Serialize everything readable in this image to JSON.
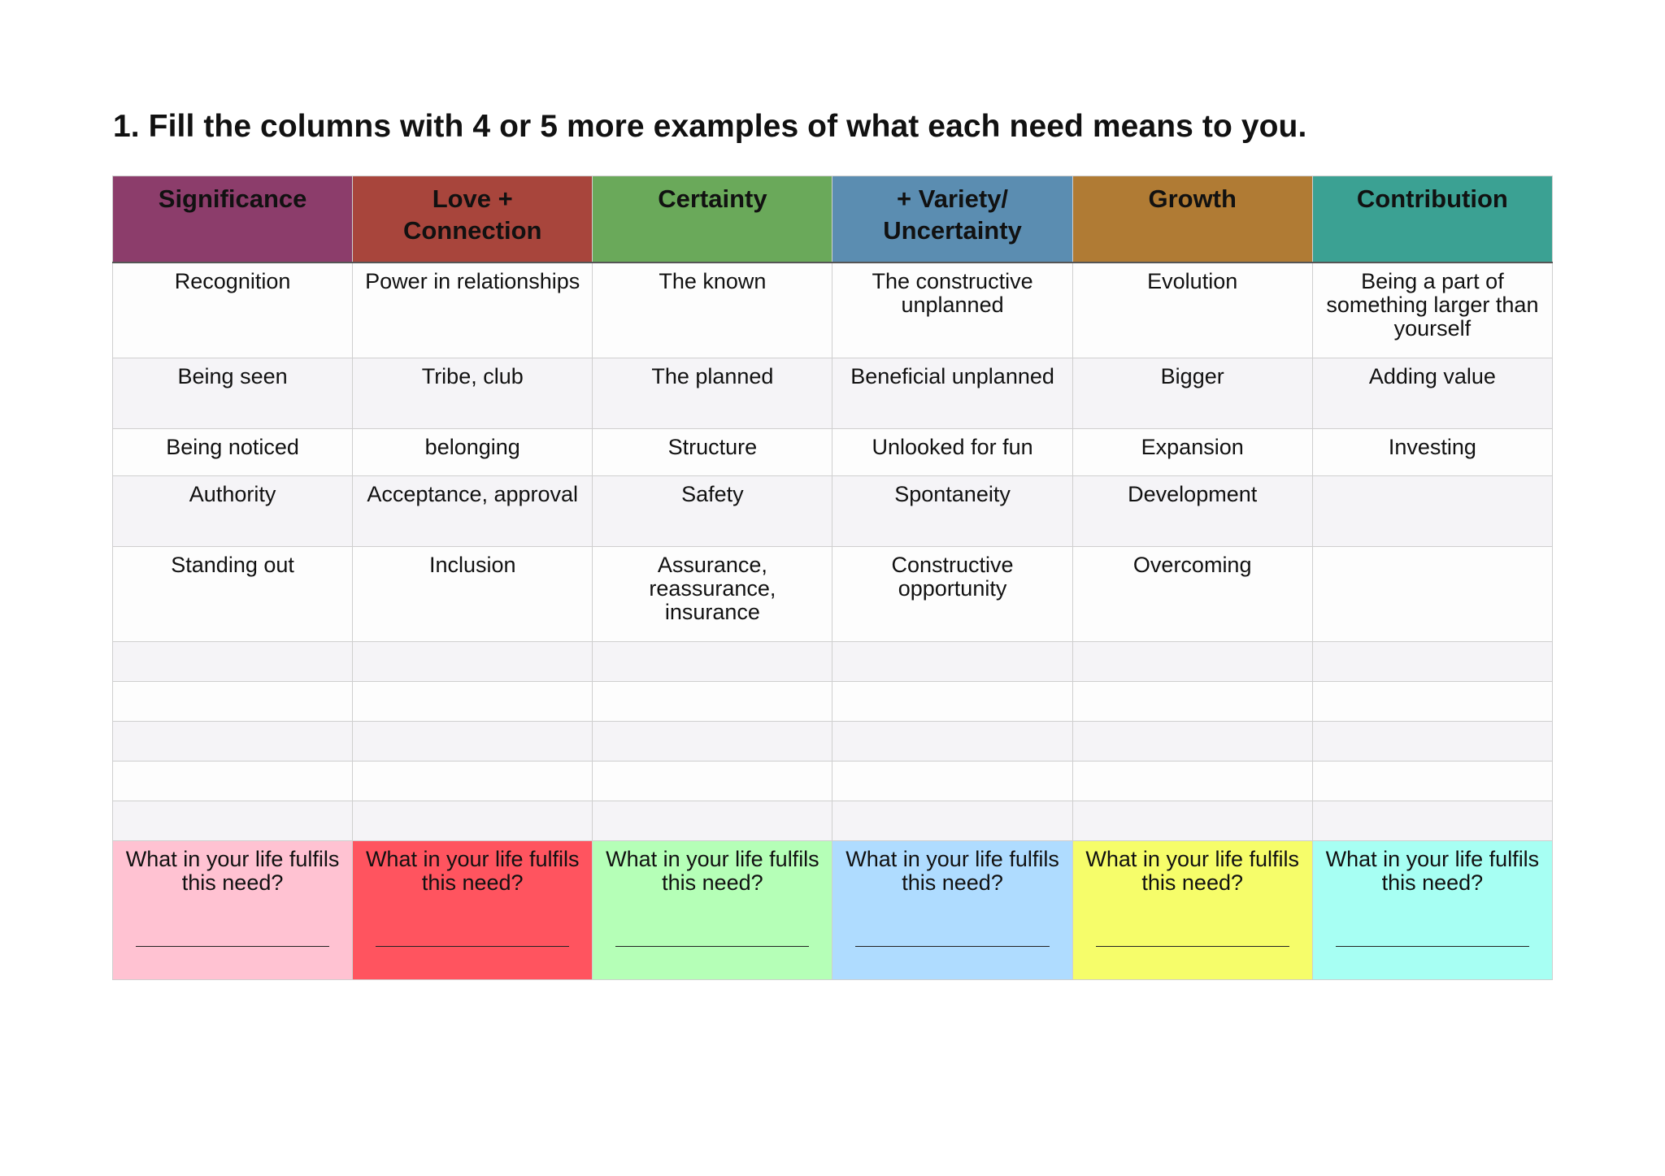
{
  "title": "1. Fill the columns with 4 or 5 more examples of what each need means to you.",
  "columns": [
    {
      "header": [
        "Significance"
      ],
      "header_color": "#8c3d6b",
      "footer_color": "#ffc2d2",
      "footer_text": [
        "What in your life fulfils",
        "this need?"
      ]
    },
    {
      "header": [
        "Love +",
        "Connection"
      ],
      "header_color": "#a8453c",
      "footer_color": "#ff545f",
      "footer_text": [
        "What in your life fulfils",
        "this need?"
      ]
    },
    {
      "header": [
        "Certainty"
      ],
      "header_color": "#6aa95a",
      "footer_color": "#b5ffb7",
      "footer_text": [
        "What in your life fulfils",
        "this need?"
      ]
    },
    {
      "header": [
        "+ Variety/",
        "Uncertainty"
      ],
      "header_color": "#5b8db1",
      "footer_color": "#afdcff",
      "footer_text": [
        "What in your life fulfils",
        "this need?"
      ]
    },
    {
      "header": [
        "Growth"
      ],
      "header_color": "#b07b34",
      "footer_color": "#f6fd6a",
      "footer_text": [
        "What in your life fulfils",
        "this need?"
      ]
    },
    {
      "header": [
        "Contribution"
      ],
      "header_color": "#3ba193",
      "footer_color": "#a7fff3",
      "footer_text": [
        "What in your life fulfils",
        "this need?"
      ]
    }
  ],
  "rows": [
    [
      [
        "Recognition"
      ],
      [
        "Power in relationships"
      ],
      [
        "The known"
      ],
      [
        "The constructive",
        "unplanned"
      ],
      [
        "Evolution"
      ],
      [
        "Being a part of",
        "something larger than",
        "yourself"
      ]
    ],
    [
      [
        "Being seen"
      ],
      [
        "Tribe, club"
      ],
      [
        "The planned"
      ],
      [
        "Beneficial unplanned"
      ],
      [
        "Bigger"
      ],
      [
        "Adding value"
      ]
    ],
    [
      [
        "Being noticed"
      ],
      [
        "belonging"
      ],
      [
        "Structure"
      ],
      [
        "Unlooked for fun"
      ],
      [
        "Expansion"
      ],
      [
        "Investing"
      ]
    ],
    [
      [
        "Authority"
      ],
      [
        "Acceptance, approval"
      ],
      [
        "Safety"
      ],
      [
        "Spontaneity"
      ],
      [
        "Development"
      ],
      []
    ],
    [
      [
        "Standing out"
      ],
      [
        "Inclusion"
      ],
      [
        "Assurance,",
        "reassurance,",
        "insurance"
      ],
      [
        "Constructive",
        "opportunity"
      ],
      [
        "Overcoming"
      ],
      []
    ]
  ],
  "empty_row_count": 5
}
